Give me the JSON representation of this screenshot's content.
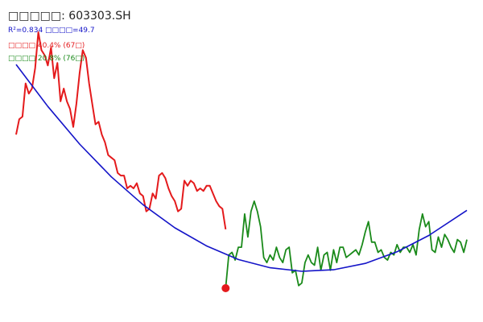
{
  "title": "□□□□□: 603303.SH",
  "fit_stats": "R²=0.834 □□□□=49.7",
  "drawdown_stat": "□□□□ 40.4% (67□)",
  "rebound_stat": "□□□□ 20.8% (76□)",
  "colors": {
    "decline": "#e41a1c",
    "rebound": "#1a8a1a",
    "fit": "#1414c8",
    "title": "#222222",
    "marker": "#e41a1c"
  },
  "chart_data": {
    "type": "line",
    "title": "□□□□□: 603303.SH",
    "xlabel": "",
    "ylabel": "",
    "grid": false,
    "xlim": [
      0,
      142
    ],
    "ylim": [
      0,
      100
    ],
    "series": [
      {
        "name": "",
        "color": "#e41a1c",
        "x": [
          0,
          1,
          2,
          3,
          4,
          5,
          6,
          7,
          8,
          9,
          10,
          11,
          12,
          13,
          14,
          15,
          16,
          17,
          18,
          19,
          20,
          21,
          22,
          23,
          24,
          25,
          26,
          27,
          28,
          29,
          30,
          31,
          32,
          33,
          34,
          35,
          36,
          37,
          38,
          39,
          40,
          41,
          42,
          43,
          44,
          45,
          46,
          47,
          48,
          49,
          50,
          51,
          52,
          53,
          54,
          55,
          56,
          57,
          58,
          59,
          60,
          61,
          62,
          63,
          64,
          65,
          66
        ],
        "values": [
          60,
          66,
          67,
          80,
          76,
          78,
          86,
          100,
          93,
          91,
          87,
          94,
          82,
          88,
          73,
          78,
          73,
          70,
          63,
          72,
          84,
          93,
          90,
          80,
          72,
          64,
          65,
          60,
          57,
          52,
          51,
          50,
          45,
          44,
          44,
          39,
          40,
          39,
          41,
          37,
          36,
          30,
          31,
          37,
          35,
          44,
          45,
          43,
          39,
          36,
          34,
          30,
          31,
          42,
          40,
          42,
          41,
          38,
          39,
          38,
          40,
          40,
          37,
          34,
          32,
          31,
          23
        ],
        "y": [
          60,
          66,
          67,
          80,
          76,
          78,
          86,
          100,
          93,
          91,
          87,
          94,
          82,
          88,
          73,
          78,
          73,
          70,
          63,
          72,
          84,
          93,
          90,
          80,
          72,
          64,
          65,
          60,
          57,
          52,
          51,
          50,
          45,
          44,
          44,
          39,
          40,
          39,
          41,
          37,
          36,
          30,
          31,
          37,
          35,
          44,
          45,
          43,
          39,
          36,
          34,
          30,
          31,
          42,
          40,
          42,
          41,
          38,
          39,
          38,
          40,
          40,
          37,
          34,
          32,
          31,
          23
        ]
      },
      {
        "name": "",
        "color": "#1a8a1a",
        "x": [
          66,
          67,
          68,
          69,
          70,
          71,
          72,
          73,
          74,
          75,
          76,
          77,
          78,
          79,
          80,
          81,
          82,
          83,
          84,
          85,
          86,
          87,
          88,
          89,
          90,
          91,
          92,
          93,
          94,
          95,
          96,
          97,
          98,
          99,
          100,
          101,
          102,
          103,
          104,
          105,
          106,
          107,
          108,
          109,
          110,
          111,
          112,
          113,
          114,
          115,
          116,
          117,
          118,
          119,
          120,
          121,
          122,
          123,
          124,
          125,
          126,
          127,
          128,
          129,
          130,
          131,
          132,
          133,
          134,
          135,
          136,
          137,
          138,
          139,
          140,
          141,
          142
        ],
        "values": [
          0,
          13,
          14,
          11,
          16,
          16,
          29,
          20,
          30,
          34,
          30,
          24,
          12,
          10,
          13,
          11,
          16,
          12,
          10,
          15,
          16,
          6,
          7,
          1,
          2,
          10,
          13,
          10,
          9,
          16,
          7,
          13,
          14,
          7,
          15,
          10,
          16,
          16,
          12,
          13,
          14,
          15,
          13,
          17,
          22,
          26,
          18,
          18,
          14,
          15,
          12,
          11,
          14,
          13,
          17,
          14,
          16,
          16,
          14,
          17,
          13,
          23,
          29,
          24,
          26,
          15,
          14,
          20,
          16,
          21,
          19,
          16,
          14,
          19,
          18,
          14,
          19
        ],
        "y": [
          0,
          13,
          14,
          11,
          16,
          16,
          29,
          20,
          30,
          34,
          30,
          24,
          12,
          10,
          13,
          11,
          16,
          12,
          10,
          15,
          16,
          6,
          7,
          1,
          2,
          10,
          13,
          10,
          9,
          16,
          7,
          13,
          14,
          7,
          15,
          10,
          16,
          16,
          12,
          13,
          14,
          15,
          13,
          17,
          22,
          26,
          18,
          18,
          14,
          15,
          12,
          11,
          14,
          13,
          17,
          14,
          16,
          16,
          14,
          17,
          13,
          23,
          29,
          24,
          26,
          15,
          14,
          20,
          16,
          21,
          19,
          16,
          14,
          19,
          18,
          14,
          19
        ]
      },
      {
        "name": "",
        "color": "#1414c8",
        "x": [
          0,
          10,
          20,
          30,
          40,
          50,
          60,
          70,
          80,
          90,
          100,
          110,
          120,
          130,
          142
        ],
        "values": [
          87.4,
          71.0,
          56.3,
          43.5,
          32.6,
          23.6,
          16.5,
          11.2,
          8.0,
          6.6,
          7.2,
          9.7,
          14.2,
          20.6,
          30.4
        ],
        "y": [
          87.4,
          71.0,
          56.3,
          43.5,
          32.6,
          23.6,
          16.5,
          11.2,
          8.0,
          6.6,
          7.2,
          9.7,
          14.2,
          20.6,
          30.4
        ]
      }
    ],
    "points": [
      {
        "x": 66,
        "y": 0
      }
    ]
  }
}
